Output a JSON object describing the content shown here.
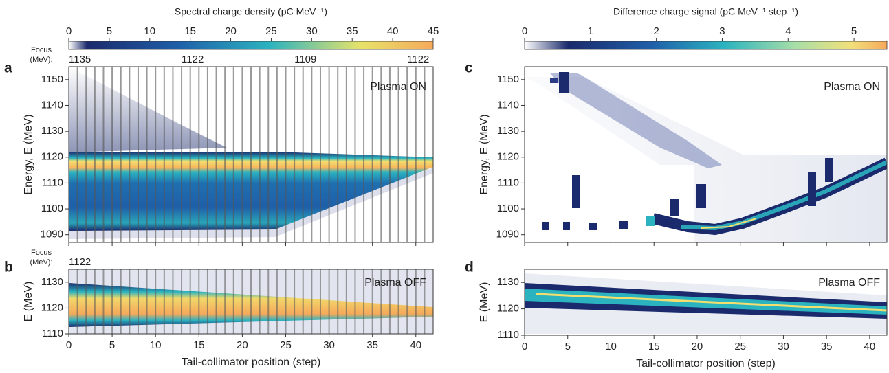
{
  "chart_data": [
    {
      "type": "heatmap",
      "panel": "a",
      "annotation": "Plasma ON",
      "ylabel": "Energy, E (MeV)",
      "xlim": [
        0,
        42
      ],
      "xticks": [
        0,
        5,
        10,
        15,
        20,
        25,
        30,
        35,
        40
      ],
      "show_xtick_labels": false,
      "ylim": [
        1087,
        1155
      ],
      "yticks": [
        1090,
        1100,
        1110,
        1120,
        1130,
        1140,
        1150
      ],
      "colorbar": {
        "title": "Spectral charge density (pC MeV⁻¹)",
        "lim": [
          0,
          45
        ],
        "ticks": [
          0,
          5,
          10,
          15,
          20,
          25,
          30,
          35,
          40,
          45
        ]
      },
      "focus": {
        "label": [
          "Focus",
          "(MeV):"
        ],
        "x": [
          0,
          13,
          26,
          39
        ],
        "values": [
          1135,
          1122,
          1109,
          1122
        ]
      }
    },
    {
      "type": "heatmap",
      "panel": "b",
      "annotation": "Plasma OFF",
      "ylabel": "E (MeV)",
      "xlabel": "Tail-collimator position (step)",
      "xlim": [
        0,
        42
      ],
      "xticks": [
        0,
        5,
        10,
        15,
        20,
        25,
        30,
        35,
        40
      ],
      "show_xtick_labels": true,
      "ylim": [
        1110,
        1135
      ],
      "yticks": [
        1110,
        1120,
        1130
      ],
      "focus": {
        "label": [
          "Focus",
          "(MeV):"
        ],
        "x": [
          0
        ],
        "values": [
          1122
        ]
      }
    },
    {
      "type": "heatmap",
      "panel": "c",
      "annotation": "Plasma ON",
      "ylabel": "Energy, E (MeV)",
      "xlim": [
        0,
        42
      ],
      "xticks": [
        0,
        5,
        10,
        15,
        20,
        25,
        30,
        35,
        40
      ],
      "show_xtick_labels": false,
      "ylim": [
        1087,
        1155
      ],
      "yticks": [
        1090,
        1100,
        1110,
        1120,
        1130,
        1140,
        1150
      ],
      "colorbar": {
        "title": "Difference charge signal (pC MeV⁻¹ step⁻¹)",
        "lim": [
          0,
          5.5
        ],
        "ticks": [
          0,
          1,
          2,
          3,
          4,
          5
        ]
      }
    },
    {
      "type": "heatmap",
      "panel": "d",
      "annotation": "Plasma OFF",
      "ylabel": "E (MeV)",
      "xlabel": "Tail-collimator position (step)",
      "xlim": [
        0,
        42
      ],
      "xticks": [
        0,
        5,
        10,
        15,
        20,
        25,
        30,
        35,
        40
      ],
      "show_xtick_labels": true,
      "ylim": [
        1110,
        1135
      ],
      "yticks": [
        1110,
        1120,
        1130
      ]
    }
  ]
}
